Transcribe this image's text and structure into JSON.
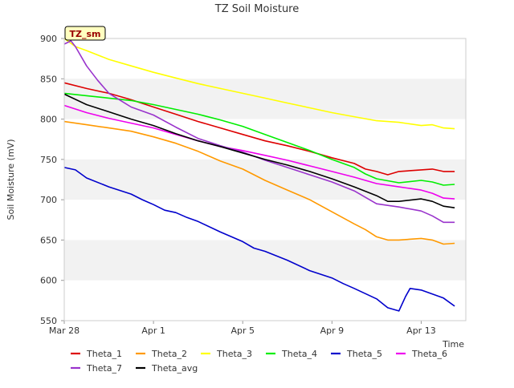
{
  "chart_data": {
    "type": "line",
    "title": "TZ Soil Moisture",
    "xlabel": "Time",
    "ylabel": "Soil Moisture (mV)",
    "badge": "TZ_sm",
    "xlim": [
      0,
      18
    ],
    "ylim": [
      550,
      900
    ],
    "x_ticks": [
      {
        "label": "Mar 28",
        "value": 0
      },
      {
        "label": "Apr 1",
        "value": 4
      },
      {
        "label": "Apr 5",
        "value": 8
      },
      {
        "label": "Apr 9",
        "value": 12
      },
      {
        "label": "Apr 13",
        "value": 16
      }
    ],
    "y_ticks": [
      550,
      600,
      650,
      700,
      750,
      800,
      850,
      900
    ],
    "grid": "alternating horizontal bands",
    "legend_position": "bottom",
    "series": [
      {
        "name": "Theta_1",
        "color": "#dd0000",
        "points": [
          [
            0,
            845
          ],
          [
            1,
            838
          ],
          [
            2,
            832
          ],
          [
            3,
            824
          ],
          [
            4,
            815
          ],
          [
            5,
            806
          ],
          [
            6,
            797
          ],
          [
            7,
            789
          ],
          [
            8,
            781
          ],
          [
            9,
            773
          ],
          [
            10,
            767
          ],
          [
            11,
            760
          ],
          [
            12,
            752
          ],
          [
            13,
            745
          ],
          [
            13.5,
            738
          ],
          [
            14,
            735
          ],
          [
            14.5,
            731
          ],
          [
            15,
            735
          ],
          [
            16,
            737
          ],
          [
            16.5,
            738
          ],
          [
            17,
            735
          ],
          [
            17.5,
            735
          ]
        ]
      },
      {
        "name": "Theta_2",
        "color": "#ff9900",
        "points": [
          [
            0,
            797
          ],
          [
            1,
            793
          ],
          [
            2,
            789
          ],
          [
            3,
            785
          ],
          [
            4,
            778
          ],
          [
            5,
            770
          ],
          [
            6,
            760
          ],
          [
            7,
            748
          ],
          [
            8,
            738
          ],
          [
            9,
            724
          ],
          [
            10,
            712
          ],
          [
            11,
            700
          ],
          [
            12,
            685
          ],
          [
            13,
            670
          ],
          [
            13.5,
            663
          ],
          [
            14,
            654
          ],
          [
            14.5,
            650
          ],
          [
            15,
            650
          ],
          [
            16,
            652
          ],
          [
            16.5,
            650
          ],
          [
            17,
            645
          ],
          [
            17.5,
            646
          ]
        ]
      },
      {
        "name": "Theta_3",
        "color": "#ffff00",
        "points": [
          [
            0,
            900
          ],
          [
            0.5,
            890
          ],
          [
            1,
            885
          ],
          [
            2,
            874
          ],
          [
            3,
            866
          ],
          [
            4,
            858
          ],
          [
            5,
            851
          ],
          [
            6,
            844
          ],
          [
            7,
            838
          ],
          [
            8,
            832
          ],
          [
            9,
            826
          ],
          [
            10,
            820
          ],
          [
            11,
            814
          ],
          [
            12,
            808
          ],
          [
            13,
            803
          ],
          [
            14,
            798
          ],
          [
            15,
            796
          ],
          [
            16,
            792
          ],
          [
            16.5,
            793
          ],
          [
            17,
            789
          ],
          [
            17.5,
            788
          ]
        ]
      },
      {
        "name": "Theta_4",
        "color": "#00ee00",
        "points": [
          [
            0,
            832
          ],
          [
            1,
            829
          ],
          [
            2,
            826
          ],
          [
            3,
            823
          ],
          [
            4,
            818
          ],
          [
            5,
            812
          ],
          [
            6,
            806
          ],
          [
            7,
            799
          ],
          [
            8,
            791
          ],
          [
            9,
            781
          ],
          [
            10,
            771
          ],
          [
            11,
            761
          ],
          [
            12,
            750
          ],
          [
            13,
            740
          ],
          [
            13.5,
            732
          ],
          [
            14,
            726
          ],
          [
            15,
            721
          ],
          [
            16,
            724
          ],
          [
            16.5,
            722
          ],
          [
            17,
            718
          ],
          [
            17.5,
            719
          ]
        ]
      },
      {
        "name": "Theta_5",
        "color": "#0000cc",
        "points": [
          [
            0,
            740
          ],
          [
            0.5,
            737
          ],
          [
            1,
            727
          ],
          [
            2,
            716
          ],
          [
            3,
            707
          ],
          [
            3.5,
            700
          ],
          [
            4,
            694
          ],
          [
            4.5,
            687
          ],
          [
            5,
            684
          ],
          [
            5.5,
            678
          ],
          [
            6,
            673
          ],
          [
            7,
            660
          ],
          [
            8,
            648
          ],
          [
            8.5,
            640
          ],
          [
            9,
            636
          ],
          [
            10,
            625
          ],
          [
            11,
            612
          ],
          [
            12,
            603
          ],
          [
            12.5,
            596
          ],
          [
            13,
            590
          ],
          [
            14,
            577
          ],
          [
            14.5,
            566
          ],
          [
            15,
            562
          ],
          [
            15.3,
            580
          ],
          [
            15.5,
            590
          ],
          [
            16,
            588
          ],
          [
            16.5,
            583
          ],
          [
            17,
            578
          ],
          [
            17.5,
            568
          ]
        ]
      },
      {
        "name": "Theta_6",
        "color": "#ee00ee",
        "points": [
          [
            0,
            817
          ],
          [
            1,
            808
          ],
          [
            2,
            801
          ],
          [
            3,
            795
          ],
          [
            4,
            789
          ],
          [
            5,
            781
          ],
          [
            6,
            773
          ],
          [
            7,
            766
          ],
          [
            8,
            761
          ],
          [
            9,
            755
          ],
          [
            10,
            749
          ],
          [
            11,
            742
          ],
          [
            12,
            735
          ],
          [
            13,
            728
          ],
          [
            14,
            720
          ],
          [
            15,
            716
          ],
          [
            16,
            712
          ],
          [
            16.5,
            708
          ],
          [
            17,
            702
          ],
          [
            17.5,
            701
          ]
        ]
      },
      {
        "name": "Theta_7",
        "color": "#9933cc",
        "points": [
          [
            0,
            893
          ],
          [
            0.3,
            897
          ],
          [
            0.5,
            890
          ],
          [
            1,
            866
          ],
          [
            1.5,
            848
          ],
          [
            2,
            832
          ],
          [
            3,
            815
          ],
          [
            4,
            805
          ],
          [
            5,
            790
          ],
          [
            6,
            776
          ],
          [
            7,
            767
          ],
          [
            8,
            759
          ],
          [
            9,
            749
          ],
          [
            10,
            740
          ],
          [
            11,
            731
          ],
          [
            12,
            722
          ],
          [
            13,
            711
          ],
          [
            14,
            695
          ],
          [
            15,
            691
          ],
          [
            16,
            686
          ],
          [
            16.5,
            680
          ],
          [
            17,
            672
          ],
          [
            17.5,
            672
          ]
        ]
      },
      {
        "name": "Theta_avg",
        "color": "#000000",
        "points": [
          [
            0,
            831
          ],
          [
            1,
            818
          ],
          [
            2,
            809
          ],
          [
            3,
            800
          ],
          [
            4,
            792
          ],
          [
            5,
            782
          ],
          [
            6,
            773
          ],
          [
            7,
            766
          ],
          [
            8,
            758
          ],
          [
            9,
            750
          ],
          [
            10,
            743
          ],
          [
            11,
            735
          ],
          [
            12,
            726
          ],
          [
            13,
            716
          ],
          [
            14,
            705
          ],
          [
            14.5,
            698
          ],
          [
            15,
            698
          ],
          [
            16,
            701
          ],
          [
            16.5,
            698
          ],
          [
            17,
            692
          ],
          [
            17.5,
            690
          ]
        ]
      }
    ]
  }
}
